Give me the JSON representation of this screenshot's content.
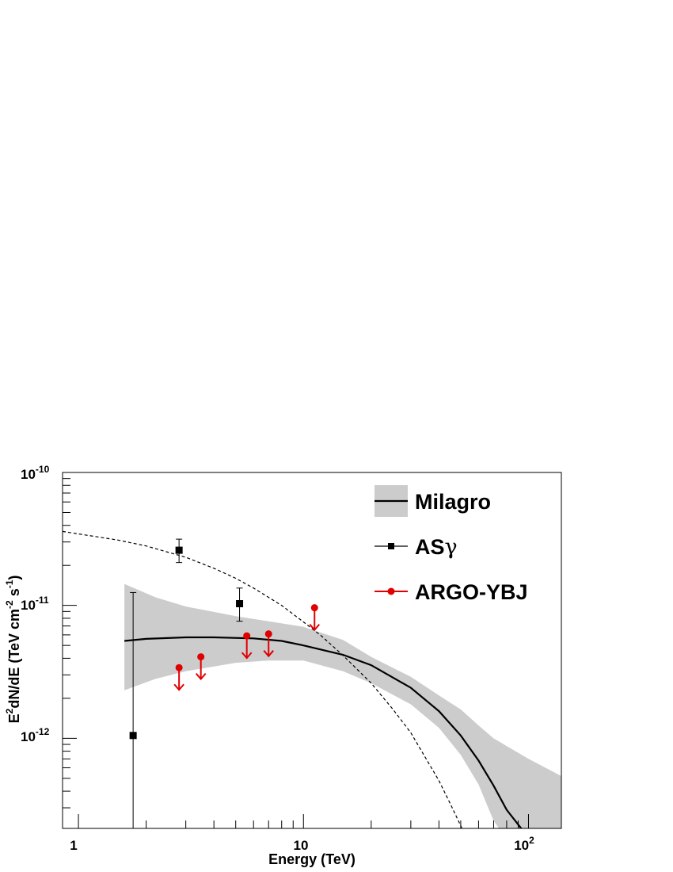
{
  "chart_data": {
    "type": "scatter",
    "xlabel": "Energy (TeV)",
    "ylabel_parts": {
      "a": "E",
      "b": "2",
      "c": "dN/dE (TeV cm",
      "d": "-2",
      "e": " s",
      "f": "-1",
      "g": ")"
    },
    "xscale": "log",
    "yscale": "log",
    "xlim": [
      0.85,
      140
    ],
    "ylim": [
      2.1e-13,
      1e-10
    ],
    "x_ticks": [
      {
        "value": 1,
        "base": "1",
        "exp": ""
      },
      {
        "value": 10,
        "base": "10",
        "exp": ""
      },
      {
        "value": 100,
        "base": "10",
        "exp": "2"
      }
    ],
    "y_ticks": [
      {
        "value": 1e-12,
        "base": "10",
        "exp": "-12"
      },
      {
        "value": 1e-11,
        "base": "10",
        "exp": "-11"
      },
      {
        "value": 1e-10,
        "base": "10",
        "exp": "-10"
      }
    ],
    "legend": {
      "position": "top-right"
    },
    "colors": {
      "band": "#cccccc",
      "argo": "#e00000",
      "asg": "#000000"
    },
    "series": [
      {
        "name": "Milagro",
        "kind": "band_with_curve",
        "band_x": [
          1.6,
          2.2,
          3.0,
          5.0,
          7.0,
          10,
          15,
          20,
          30,
          40,
          50,
          60,
          70,
          100,
          140
        ],
        "band_upper": [
          1.45e-11,
          1.15e-11,
          9.8e-12,
          8.3e-12,
          7.6e-12,
          6.9e-12,
          5.5e-12,
          4.1e-12,
          2.9e-12,
          2.1e-12,
          1.65e-12,
          1.25e-12,
          1e-12,
          7e-13,
          5.2e-13
        ],
        "band_lower": [
          2.3e-12,
          2.8e-12,
          3.2e-12,
          3.7e-12,
          3.85e-12,
          3.85e-12,
          3.2e-12,
          2.6e-12,
          1.8e-12,
          1.2e-12,
          7.5e-13,
          4.5e-13,
          2.4e-13,
          1e-13,
          1e-13
        ],
        "curve_x": [
          1.6,
          2.0,
          3.0,
          4.0,
          6.0,
          8.0,
          10,
          15,
          20,
          30,
          40,
          50,
          60,
          70,
          80,
          95
        ],
        "curve_y": [
          5.4e-12,
          5.6e-12,
          5.75e-12,
          5.75e-12,
          5.65e-12,
          5.4e-12,
          5e-12,
          4.25e-12,
          3.55e-12,
          2.4e-12,
          1.6e-12,
          1.05e-12,
          6.8e-13,
          4.4e-13,
          2.9e-13,
          2e-13
        ]
      },
      {
        "name": "AS",
        "name_symbol": "γ",
        "kind": "points_with_errors",
        "x": [
          1.75,
          2.8,
          5.2
        ],
        "y": [
          1.05e-12,
          2.6e-11,
          1.03e-11
        ],
        "y_lo": [
          1e-13,
          2.1e-11,
          7.6e-12
        ],
        "y_hi": [
          1.25e-11,
          3.15e-11,
          1.35e-11
        ]
      },
      {
        "name": "ARGO-YBJ",
        "kind": "upper_limits",
        "x": [
          2.8,
          3.5,
          5.6,
          7.0,
          11.2
        ],
        "y": [
          3.4e-12,
          4.1e-12,
          5.9e-12,
          6.1e-12,
          9.6e-12
        ]
      },
      {
        "kind": "dashed_curve",
        "x": [
          0.85,
          1.0,
          1.5,
          2.0,
          3.0,
          4.0,
          5.0,
          6.0,
          8.0,
          10,
          12,
          15,
          20,
          25,
          30,
          40,
          45,
          50,
          55
        ],
        "y": [
          3.6e-11,
          3.45e-11,
          3.1e-11,
          2.8e-11,
          2.3e-11,
          1.9e-11,
          1.6e-11,
          1.35e-11,
          1e-11,
          7.5e-12,
          5.9e-12,
          4.2e-12,
          2.6e-12,
          1.65e-12,
          1.1e-12,
          4.8e-13,
          3.2e-13,
          2.2e-13,
          1.5e-13
        ]
      }
    ]
  }
}
